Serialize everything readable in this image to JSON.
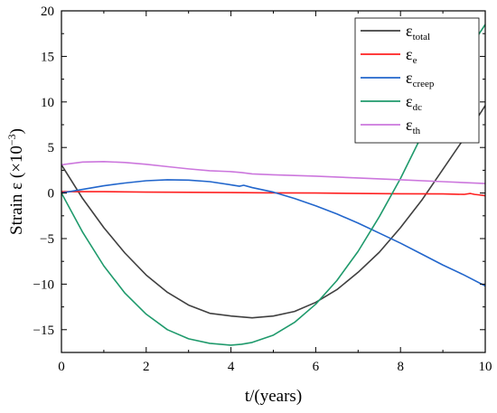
{
  "chart_data": {
    "type": "line",
    "xlabel": "t/(years)",
    "ylabel": {
      "main": "Strain ε (×10",
      "exp": "−3",
      "close": ")"
    },
    "xlim": [
      0,
      10
    ],
    "ylim": [
      -17.5,
      20
    ],
    "x_ticks": [
      0,
      2,
      4,
      6,
      8,
      10
    ],
    "y_ticks": [
      -15,
      -10,
      -5,
      0,
      5,
      10,
      15,
      20
    ],
    "x_tick_labels": [
      "0",
      "2",
      "4",
      "6",
      "8",
      "10"
    ],
    "y_tick_labels": [
      "−15",
      "−10",
      "−5",
      "0",
      "5",
      "10",
      "15",
      "20"
    ],
    "grid": false,
    "legend_position": "top-right",
    "series": [
      {
        "name": "ε",
        "name_sub": "total",
        "color": "#404040",
        "x": [
          0,
          0.5,
          1,
          1.5,
          2,
          2.5,
          3,
          3.5,
          4,
          4.25,
          4.5,
          5,
          5.5,
          6,
          6.5,
          7,
          7.5,
          8,
          8.5,
          9,
          9.5,
          10
        ],
        "y": [
          3.1,
          -0.6,
          -3.8,
          -6.6,
          -9.0,
          -10.9,
          -12.3,
          -13.2,
          -13.5,
          -13.6,
          -13.7,
          -13.5,
          -13.0,
          -12.0,
          -10.6,
          -8.7,
          -6.5,
          -3.8,
          -0.8,
          2.6,
          6.0,
          9.6
        ]
      },
      {
        "name": "ε",
        "name_sub": "e",
        "color": "#ff2020",
        "x": [
          0,
          1,
          2,
          3,
          4,
          5,
          6,
          7,
          8,
          9,
          9.5,
          9.65,
          9.75,
          9.85,
          10
        ],
        "y": [
          0.15,
          0.15,
          0.1,
          0.08,
          0.05,
          0.02,
          0.0,
          -0.05,
          -0.08,
          -0.1,
          -0.15,
          -0.05,
          -0.15,
          -0.2,
          -0.3
        ]
      },
      {
        "name": "ε",
        "name_sub": "creep",
        "color": "#2266cc",
        "x": [
          0,
          0.5,
          1,
          1.5,
          2,
          2.5,
          3,
          3.5,
          4,
          4.2,
          4.3,
          4.5,
          5,
          5.5,
          6,
          6.5,
          7,
          7.5,
          8,
          8.5,
          9,
          9.5,
          10
        ],
        "y": [
          0.0,
          0.4,
          0.8,
          1.1,
          1.35,
          1.45,
          1.42,
          1.25,
          0.9,
          0.75,
          0.85,
          0.6,
          0.1,
          -0.6,
          -1.4,
          -2.3,
          -3.3,
          -4.4,
          -5.5,
          -6.7,
          -7.9,
          -9.0,
          -10.2
        ]
      },
      {
        "name": "ε",
        "name_sub": "dc",
        "color": "#1f9a6c",
        "x": [
          0,
          0.5,
          1,
          1.5,
          2,
          2.5,
          3,
          3.5,
          4,
          4.25,
          4.5,
          5,
          5.5,
          6,
          6.5,
          7,
          7.5,
          8,
          8.5,
          9,
          9.5,
          10
        ],
        "y": [
          0.0,
          -4.3,
          -8.0,
          -11.0,
          -13.3,
          -15.0,
          -16.0,
          -16.5,
          -16.7,
          -16.6,
          -16.4,
          -15.6,
          -14.2,
          -12.2,
          -9.6,
          -6.4,
          -2.6,
          1.6,
          6.3,
          11.0,
          15.0,
          18.5
        ]
      },
      {
        "name": "ε",
        "name_sub": "th",
        "color": "#cc77dd",
        "x": [
          0,
          0.5,
          1,
          1.5,
          2,
          2.5,
          3,
          3.5,
          4,
          4.25,
          4.5,
          5,
          6,
          7,
          8,
          9,
          10
        ],
        "y": [
          3.1,
          3.4,
          3.45,
          3.35,
          3.15,
          2.9,
          2.65,
          2.45,
          2.35,
          2.25,
          2.1,
          2.0,
          1.85,
          1.65,
          1.45,
          1.25,
          1.05
        ]
      }
    ]
  }
}
